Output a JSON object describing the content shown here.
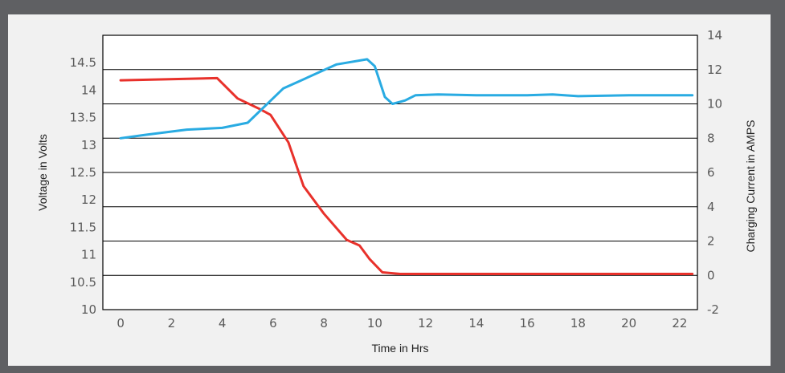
{
  "chart_data": {
    "type": "line",
    "xlabel": "Time in Hrs",
    "ylabel_left": "Voltage in Volts",
    "ylabel_right": "Charging Current in AMPS",
    "x_ticks": [
      "0",
      "2",
      "4",
      "6",
      "8",
      "10",
      "12",
      "14",
      "16",
      "18",
      "20",
      "22"
    ],
    "y_left_ticks": [
      "10",
      "10.5",
      "11",
      "11.5",
      "12",
      "12.5",
      "13",
      "13.5",
      "14",
      "14.5"
    ],
    "y_right_ticks": [
      "-2",
      "0",
      "2",
      "4",
      "6",
      "8",
      "10",
      "12",
      "14"
    ],
    "xlim": [
      -0.7,
      22.7
    ],
    "ylim_left": [
      10,
      15
    ],
    "ylim_right": [
      -2,
      14
    ],
    "grid": true,
    "series": [
      {
        "axis": "left",
        "color": "#e8312b",
        "x": [
          0,
          3.8,
          4.6,
          5.5,
          5.9,
          6.6,
          7.2,
          8.0,
          8.9,
          9.4,
          9.8,
          10.3,
          11.0,
          12.0,
          22.5
        ],
        "y": [
          14.18,
          14.22,
          13.85,
          13.65,
          13.55,
          13.05,
          12.25,
          11.75,
          11.27,
          11.17,
          10.92,
          10.68,
          10.65,
          10.65,
          10.65
        ]
      },
      {
        "axis": "right",
        "color": "#29abe2",
        "x": [
          0,
          1.0,
          2.6,
          4.0,
          5.0,
          6.4,
          7.0,
          8.5,
          9.7,
          10.0,
          10.4,
          10.7,
          11.2,
          11.6,
          12.5,
          14.0,
          16.0,
          17.0,
          18.0,
          20.0,
          22.5
        ],
        "y": [
          8.0,
          8.2,
          8.5,
          8.6,
          8.9,
          10.9,
          11.3,
          12.3,
          12.6,
          12.2,
          10.4,
          10.0,
          10.2,
          10.5,
          10.55,
          10.5,
          10.5,
          10.55,
          10.45,
          10.5,
          10.5
        ]
      }
    ]
  }
}
